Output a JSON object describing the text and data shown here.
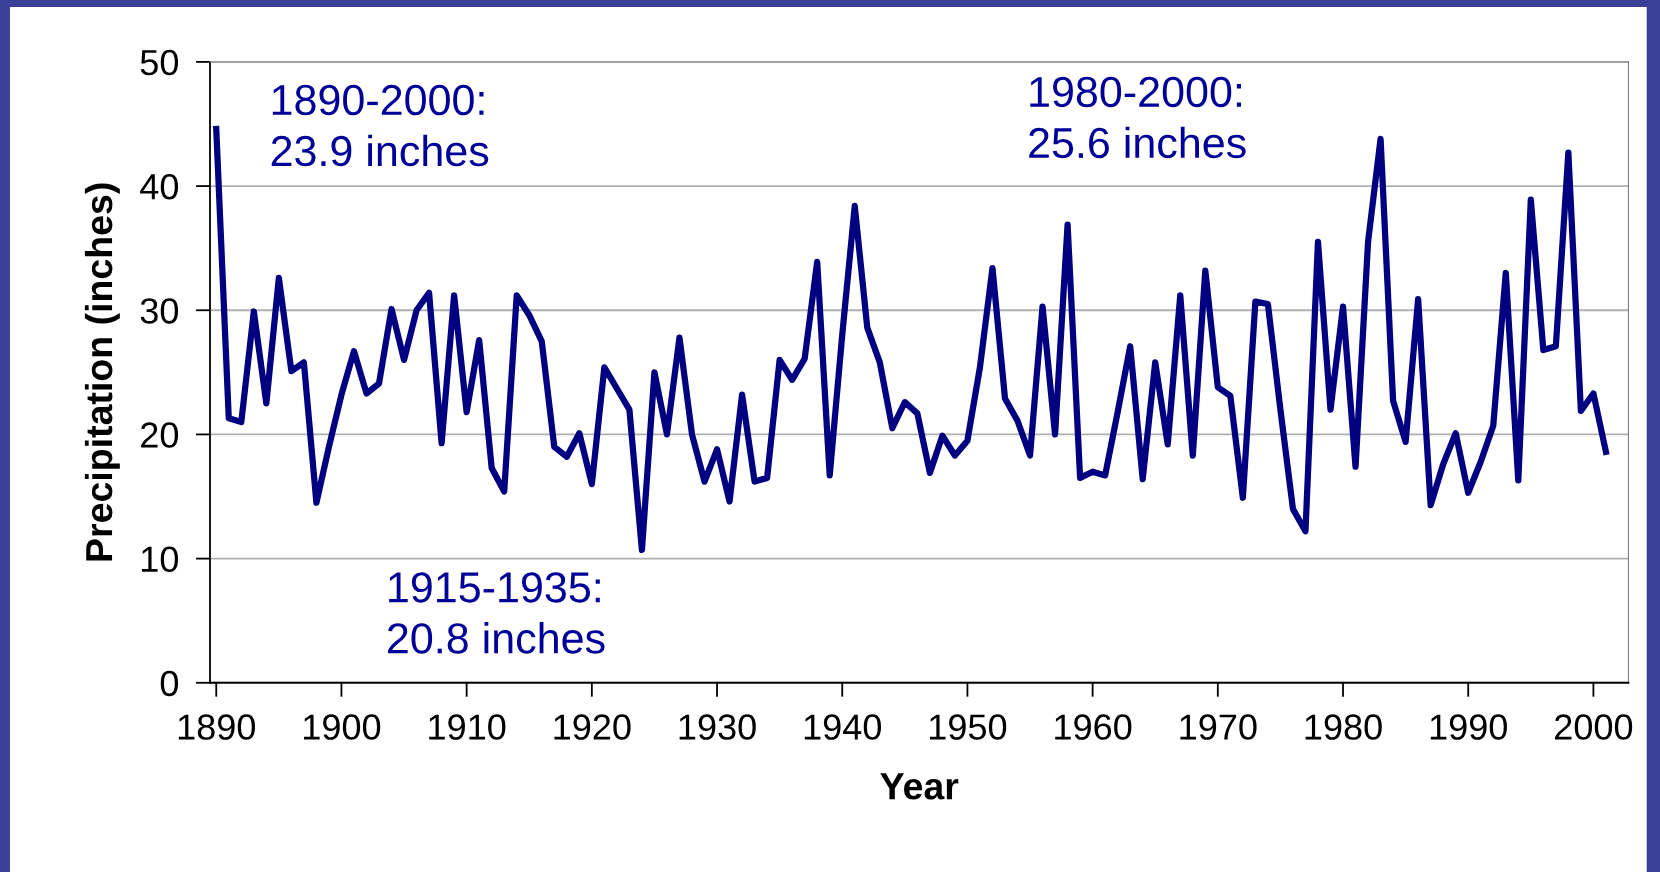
{
  "chart_data": {
    "type": "line",
    "xlabel": "Year",
    "ylabel": "Precipitation (inches)",
    "x": [
      1890,
      1891,
      1892,
      1893,
      1894,
      1895,
      1896,
      1897,
      1898,
      1899,
      1900,
      1901,
      1902,
      1903,
      1904,
      1905,
      1906,
      1907,
      1908,
      1909,
      1910,
      1911,
      1912,
      1913,
      1914,
      1915,
      1916,
      1917,
      1918,
      1919,
      1920,
      1921,
      1922,
      1923,
      1924,
      1925,
      1926,
      1927,
      1928,
      1929,
      1930,
      1931,
      1932,
      1933,
      1934,
      1935,
      1936,
      1937,
      1938,
      1939,
      1940,
      1941,
      1942,
      1943,
      1944,
      1945,
      1946,
      1947,
      1948,
      1949,
      1950,
      1951,
      1952,
      1953,
      1954,
      1955,
      1956,
      1957,
      1958,
      1959,
      1960,
      1961,
      1962,
      1963,
      1964,
      1965,
      1966,
      1967,
      1968,
      1969,
      1970,
      1971,
      1972,
      1973,
      1974,
      1975,
      1976,
      1977,
      1978,
      1979,
      1980,
      1981,
      1982,
      1983,
      1984,
      1985,
      1986,
      1987,
      1988,
      1989,
      1990,
      1991,
      1992,
      1993,
      1994,
      1995,
      1996,
      1997,
      1998,
      1999,
      2000,
      2001
    ],
    "series": [
      {
        "color": "#000080",
        "values": [
          44.6,
          21.3,
          21.0,
          29.9,
          22.5,
          32.6,
          25.1,
          25.8,
          14.5,
          19.0,
          23.2,
          26.7,
          23.3,
          24.1,
          30.1,
          26.0,
          30.0,
          31.4,
          19.3,
          31.2,
          21.8,
          27.6,
          17.3,
          15.4,
          31.2,
          29.6,
          27.5,
          19.0,
          18.2,
          20.1,
          16.0,
          25.4,
          23.7,
          22.0,
          10.7,
          25.0,
          20.0,
          27.8,
          20.0,
          16.2,
          18.8,
          14.6,
          23.2,
          16.2,
          16.5,
          26.0,
          24.4,
          26.1,
          33.9,
          16.7,
          28.0,
          38.4,
          28.6,
          25.8,
          20.5,
          22.6,
          21.7,
          16.9,
          19.9,
          18.3,
          19.5,
          25.4,
          33.4,
          22.9,
          21.1,
          18.3,
          30.3,
          20.0,
          36.9,
          16.5,
          17.0,
          16.7,
          21.8,
          27.1,
          16.4,
          25.8,
          19.2,
          31.2,
          18.3,
          33.2,
          23.8,
          23.1,
          14.9,
          30.7,
          30.5,
          22.0,
          14.0,
          12.2,
          35.5,
          22.0,
          30.3,
          17.4,
          35.5,
          43.8,
          22.7,
          19.4,
          30.9,
          14.3,
          17.6,
          20.1,
          15.3,
          17.8,
          20.7,
          33.0,
          16.3,
          38.9,
          26.8,
          27.1,
          42.7,
          21.9,
          23.3,
          18.6
        ]
      }
    ],
    "xlim": [
      1889.5,
      2002.8
    ],
    "xticks": [
      1890,
      1900,
      1910,
      1920,
      1930,
      1940,
      1950,
      1960,
      1970,
      1980,
      1990,
      2000
    ],
    "ylim": [
      0,
      50
    ],
    "yticks": [
      0,
      10,
      20,
      30,
      40,
      50
    ],
    "grid": "y",
    "marker": "none",
    "line_style": "solid",
    "annotations": [
      "1890-2000:\n23.9 inches",
      "1915-1935:\n20.8 inches",
      "1980-2000:\n25.6 inches"
    ]
  }
}
